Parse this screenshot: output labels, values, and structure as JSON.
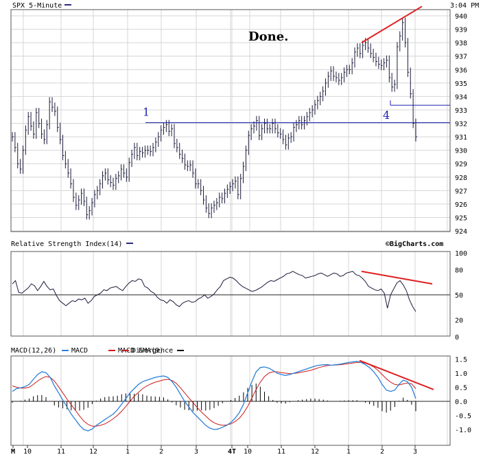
{
  "chart_data": [
    {
      "type": "line",
      "panel": "price",
      "title": "SPX 5-Minute",
      "time_label": "3:04 PM",
      "legend_placement": "top-left",
      "grid": true,
      "ylim": [
        924,
        940
      ],
      "y_ticks": [
        "924",
        "925",
        "926",
        "927",
        "928",
        "929",
        "930",
        "931",
        "932",
        "933",
        "934",
        "935",
        "936",
        "937",
        "938",
        "939",
        "940"
      ],
      "series": [
        {
          "values": [
            931.0,
            930.2,
            929.0,
            928.6,
            930.0,
            931.5,
            932.5,
            931.8,
            931.2,
            932.8,
            932.0,
            931.2,
            930.8,
            931.9,
            933.6,
            933.2,
            932.9,
            931.7,
            930.8,
            929.6,
            929.0,
            928.3,
            927.5,
            926.5,
            925.9,
            926.3,
            926.8,
            926.2,
            925.2,
            925.5,
            926.1,
            926.7,
            927.0,
            927.5,
            928.1,
            928.3,
            927.8,
            927.6,
            927.4,
            927.9,
            928.1,
            928.6,
            928.3,
            928.0,
            929.1,
            929.7,
            930.2,
            929.6,
            929.9,
            929.8,
            930.0,
            930.0,
            929.9,
            930.2,
            930.6,
            931.0,
            931.5,
            931.7,
            931.9,
            931.4,
            931.6,
            930.5,
            930.2,
            929.7,
            929.4,
            928.9,
            928.8,
            928.9,
            928.3,
            927.5,
            927.5,
            927.0,
            926.3,
            925.7,
            925.3,
            925.7,
            925.9,
            926.1,
            926.5,
            926.4,
            926.8,
            927.1,
            927.3,
            927.5,
            927.7,
            926.7,
            927.9,
            928.8,
            930.0,
            931.1,
            931.6,
            931.8,
            932.2,
            931.1,
            931.6,
            932.0,
            931.6,
            931.6,
            932.0,
            931.6,
            931.3,
            931.2,
            930.8,
            930.4,
            930.9,
            931.0,
            931.7,
            931.9,
            932.2,
            931.9,
            932.2,
            932.5,
            932.8,
            933.0,
            933.4,
            933.7,
            934.0,
            934.4,
            935.0,
            935.5,
            935.9,
            935.5,
            935.4,
            935.2,
            935.4,
            935.8,
            936.0,
            936.0,
            936.5,
            937.3,
            937.6,
            937.2,
            937.8,
            938.0,
            937.6,
            937.2,
            936.9,
            936.6,
            936.4,
            936.3,
            936.5,
            936.7,
            935.4,
            934.7,
            934.9,
            937.7,
            938.5,
            939.5,
            938.0,
            935.8,
            934.2,
            932.0,
            931.0
          ]
        }
      ],
      "reference_lines": [
        {
          "label": "1",
          "value": 932.05
        },
        {
          "label": "4",
          "value": 933.35
        }
      ],
      "trend_line": {
        "from_value": 938.0,
        "to_value": 940.7
      },
      "annotation": "Done.",
      "x_ticks": [
        "M",
        "10",
        "11",
        "12",
        "1",
        "2",
        "3",
        "4T",
        "10",
        "11",
        "12",
        "1",
        "2",
        "3"
      ]
    },
    {
      "type": "line",
      "panel": "rsi",
      "title": "Relative Strength Index(14)",
      "source_label": "©BigCharts.com",
      "legend_placement": "top-left",
      "ylim": [
        0,
        100
      ],
      "y_ticks": [
        "0",
        "20",
        "50",
        "80",
        "100"
      ],
      "reference_value": 50,
      "series": [
        {
          "values": [
            63,
            67,
            53,
            52,
            55,
            58,
            63,
            61,
            55,
            60,
            66,
            60,
            56,
            57,
            49,
            43,
            40,
            37,
            40,
            43,
            42,
            45,
            44,
            46,
            40,
            43,
            48,
            50,
            52,
            56,
            55,
            58,
            59,
            60,
            57,
            55,
            60,
            64,
            67,
            66,
            69,
            68,
            60,
            58,
            54,
            52,
            47,
            44,
            43,
            40,
            44,
            42,
            38,
            36,
            40,
            42,
            43,
            41,
            42,
            45,
            47,
            50,
            46,
            48,
            51,
            56,
            60,
            67,
            69,
            71,
            70,
            67,
            63,
            60,
            58,
            56,
            54,
            55,
            57,
            59,
            62,
            65,
            67,
            66,
            68,
            70,
            72,
            75,
            76,
            78,
            76,
            74,
            73,
            70,
            71,
            72,
            73,
            75,
            76,
            74,
            72,
            74,
            76,
            75,
            72,
            73,
            76,
            77,
            78,
            74,
            73,
            70,
            66,
            60,
            58,
            56,
            55,
            57,
            52,
            34,
            50,
            57,
            64,
            67,
            62,
            55,
            44,
            36,
            30
          ]
        }
      ],
      "trend_line": {
        "from_value": 78,
        "to_value": 63
      }
    },
    {
      "type": "line",
      "panel": "macd",
      "title": "MACD(12,26)",
      "legend_placement": "top-left",
      "ylim": [
        -1.1,
        1.5
      ],
      "y_ticks": [
        "1.5",
        "1.0",
        "0.5",
        "0.0",
        "-0.5",
        "-1.0"
      ],
      "zero_value": 0.0,
      "series": [
        {
          "name": "MACD",
          "values": [
            0.35,
            0.45,
            0.48,
            0.52,
            0.6,
            0.78,
            0.95,
            1.05,
            1.02,
            0.85,
            0.55,
            0.3,
            0.05,
            -0.2,
            -0.45,
            -0.65,
            -0.85,
            -1.0,
            -1.05,
            -0.98,
            -0.85,
            -0.75,
            -0.65,
            -0.55,
            -0.45,
            -0.3,
            -0.1,
            0.1,
            0.3,
            0.45,
            0.6,
            0.7,
            0.75,
            0.8,
            0.85,
            0.88,
            0.9,
            0.85,
            0.7,
            0.5,
            0.25,
            0.0,
            -0.2,
            -0.4,
            -0.55,
            -0.7,
            -0.85,
            -0.95,
            -1.0,
            -0.98,
            -0.92,
            -0.85,
            -0.75,
            -0.6,
            -0.4,
            -0.1,
            0.3,
            0.7,
            1.05,
            1.2,
            1.22,
            1.18,
            1.1,
            1.0,
            0.95,
            0.92,
            0.95,
            1.0,
            1.05,
            1.1,
            1.15,
            1.2,
            1.25,
            1.28,
            1.3,
            1.3,
            1.28,
            1.3,
            1.32,
            1.35,
            1.38,
            1.4,
            1.42,
            1.38,
            1.3,
            1.2,
            1.05,
            0.85,
            0.6,
            0.4,
            0.35,
            0.4,
            0.6,
            0.75,
            0.7,
            0.5,
            0.1
          ]
        },
        {
          "name": "MACD EMA(9)",
          "values": [
            0.55,
            0.5,
            0.47,
            0.47,
            0.5,
            0.6,
            0.72,
            0.82,
            0.88,
            0.85,
            0.72,
            0.52,
            0.3,
            0.08,
            -0.12,
            -0.32,
            -0.52,
            -0.7,
            -0.82,
            -0.88,
            -0.88,
            -0.85,
            -0.8,
            -0.72,
            -0.62,
            -0.5,
            -0.35,
            -0.18,
            0.0,
            0.18,
            0.32,
            0.45,
            0.55,
            0.62,
            0.68,
            0.72,
            0.76,
            0.78,
            0.74,
            0.64,
            0.48,
            0.3,
            0.12,
            -0.05,
            -0.22,
            -0.38,
            -0.52,
            -0.66,
            -0.76,
            -0.82,
            -0.85,
            -0.84,
            -0.8,
            -0.72,
            -0.6,
            -0.42,
            -0.18,
            0.12,
            0.42,
            0.68,
            0.88,
            1.0,
            1.05,
            1.05,
            1.02,
            1.0,
            0.98,
            0.99,
            1.01,
            1.04,
            1.07,
            1.1,
            1.15,
            1.2,
            1.24,
            1.27,
            1.28,
            1.29,
            1.3,
            1.32,
            1.34,
            1.36,
            1.38,
            1.38,
            1.35,
            1.3,
            1.22,
            1.1,
            0.95,
            0.8,
            0.68,
            0.6,
            0.58,
            0.62,
            0.65,
            0.62,
            0.45
          ]
        }
      ],
      "histogram": {
        "name": "Divergence",
        "values": [
          -0.05,
          0.0,
          0.02,
          0.06,
          0.1,
          0.18,
          0.22,
          0.22,
          0.15,
          0.0,
          -0.15,
          -0.22,
          -0.25,
          -0.28,
          -0.32,
          -0.33,
          -0.33,
          -0.3,
          -0.23,
          -0.1,
          0.02,
          0.1,
          0.15,
          0.17,
          0.18,
          0.2,
          0.25,
          0.28,
          0.3,
          0.27,
          0.28,
          0.25,
          0.2,
          0.18,
          0.17,
          0.16,
          0.14,
          0.07,
          -0.04,
          -0.14,
          -0.22,
          -0.3,
          -0.32,
          -0.35,
          -0.33,
          -0.32,
          -0.33,
          -0.3,
          -0.24,
          -0.16,
          -0.07,
          -0.01,
          0.05,
          0.12,
          0.2,
          0.32,
          0.48,
          0.58,
          0.63,
          0.52,
          0.34,
          0.18,
          0.05,
          -0.05,
          -0.07,
          -0.08,
          -0.03,
          0.01,
          0.04,
          0.06,
          0.08,
          0.1,
          0.1,
          0.08,
          0.06,
          0.03,
          0.0,
          0.01,
          0.02,
          0.03,
          0.04,
          0.04,
          0.04,
          0.0,
          -0.05,
          -0.1,
          -0.16,
          -0.23,
          -0.35,
          -0.4,
          -0.33,
          -0.2,
          0.02,
          0.13,
          0.05,
          -0.12,
          -0.35
        ]
      },
      "trend_line": {
        "from_value": 1.45,
        "to_value": 0.42
      },
      "x_ticks": [
        "M",
        "10",
        "11",
        "12",
        "1",
        "2",
        "3",
        "4T",
        "10",
        "11",
        "12",
        "1",
        "2",
        "3"
      ]
    }
  ],
  "colors": {
    "macd": "#2b7fd8",
    "ema": "#cc1a1a",
    "trend": "#e02020",
    "reference": "#1f1fb0",
    "legend_dash": "#2a2a7a"
  }
}
